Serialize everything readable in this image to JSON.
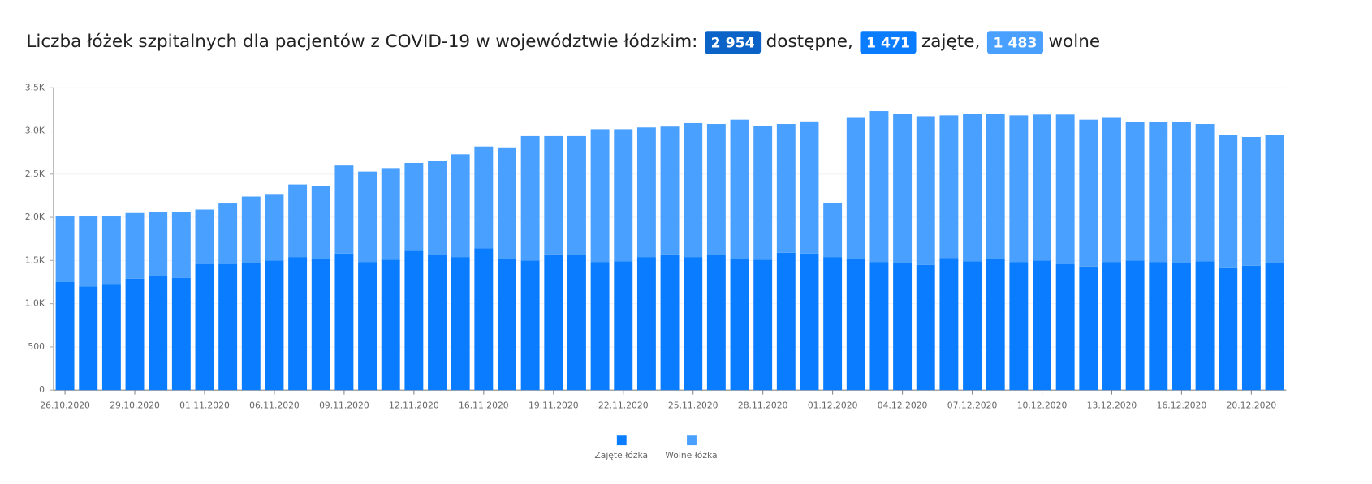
{
  "header": {
    "text": "Liczba łóżek szpitalnych dla pacjentów z COVID-19 w województwie łódzkim:",
    "parts": [
      {
        "badge": "2 954",
        "text": "dostępne,"
      },
      {
        "badge": "1 471",
        "text": "zajęte,"
      },
      {
        "badge": "1 483",
        "text": "wolne"
      }
    ],
    "badge_colors": [
      "#0b63c8",
      "#0a7cff",
      "#4aa0ff"
    ]
  },
  "chart_data": {
    "type": "bar",
    "stacked": true,
    "categories": [
      "26.10.2020",
      null,
      null,
      "29.10.2020",
      null,
      null,
      "01.11.2020",
      null,
      null,
      "06.11.2020",
      null,
      null,
      "09.11.2020",
      null,
      null,
      "12.11.2020",
      null,
      null,
      "16.11.2020",
      null,
      null,
      "19.11.2020",
      null,
      null,
      "22.11.2020",
      null,
      null,
      "25.11.2020",
      null,
      null,
      "28.11.2020",
      null,
      null,
      "01.12.2020",
      null,
      null,
      "04.12.2020",
      null,
      null,
      "07.12.2020",
      null,
      null,
      "10.12.2020",
      null,
      null,
      "13.12.2020",
      null,
      null,
      "16.12.2020",
      null,
      null,
      "20.12.2020",
      null
    ],
    "series": [
      {
        "name": "Zajęte łóżka",
        "color": "#0a7cff",
        "values": [
          1250,
          1200,
          1230,
          1290,
          1320,
          1300,
          1460,
          1460,
          1470,
          1500,
          1540,
          1520,
          1580,
          1480,
          1510,
          1620,
          1560,
          1540,
          1640,
          1520,
          1500,
          1570,
          1560,
          1480,
          1490,
          1540,
          1570,
          1540,
          1560,
          1520,
          1510,
          1590,
          1580,
          1540,
          1520,
          1480,
          1470,
          1450,
          1530,
          1490,
          1520,
          1480,
          1500,
          1460,
          1430,
          1480,
          1500,
          1480,
          1470,
          1490,
          1420,
          1440,
          1471
        ]
      },
      {
        "name": "Wolne łóżka",
        "color": "#4aa0ff",
        "values": [
          760,
          810,
          780,
          760,
          740,
          760,
          630,
          700,
          770,
          770,
          840,
          840,
          1020,
          1050,
          1060,
          1010,
          1090,
          1190,
          1180,
          1290,
          1440,
          1370,
          1380,
          1540,
          1530,
          1500,
          1480,
          1550,
          1520,
          1610,
          1550,
          1490,
          1530,
          630,
          1640,
          1750,
          1730,
          1720,
          1650,
          1710,
          1680,
          1700,
          1690,
          1730,
          1700,
          1680,
          1600,
          1620,
          1630,
          1590,
          1530,
          1490,
          1483
        ]
      }
    ],
    "ylim": [
      0,
      3500
    ],
    "yticks": [
      0,
      500,
      {
        "value": 1000,
        "label": "1.0K"
      },
      {
        "value": 1500,
        "label": "1.5K"
      },
      {
        "value": 2000,
        "label": "2.0K"
      },
      {
        "value": 2500,
        "label": "2.5K"
      },
      {
        "value": 3000,
        "label": "3.0K"
      },
      {
        "value": 3500,
        "label": "3.5K"
      }
    ],
    "grid": true
  }
}
